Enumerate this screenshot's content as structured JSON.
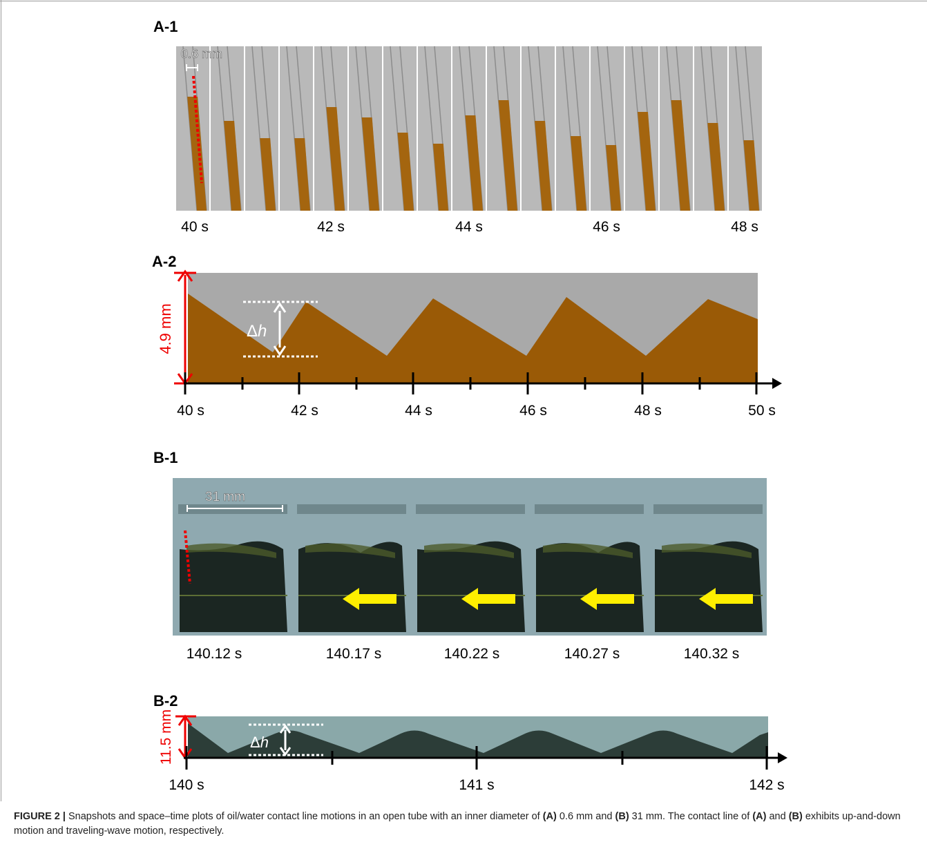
{
  "panels": [
    {
      "label": "A-1",
      "scale": "0.6 mm",
      "times": [
        "40 s",
        "42 s",
        "44 s",
        "46 s",
        "48 s"
      ]
    },
    {
      "label": "A-2",
      "height": "4.9 mm",
      "delta": "Δ",
      "delta_var": "h",
      "times": [
        "40 s",
        "42 s",
        "44 s",
        "46 s",
        "48 s",
        "50 s"
      ]
    },
    {
      "label": "B-1",
      "scale": "31 mm",
      "times": [
        "140.12 s",
        "140.17 s",
        "140.22 s",
        "140.27 s",
        "140.32 s"
      ]
    },
    {
      "label": "B-2",
      "height": "11.5 mm",
      "delta": "Δ",
      "delta_var": "h",
      "times": [
        "140 s",
        "141 s",
        "142 s"
      ]
    }
  ],
  "caption": {
    "parts": [
      {
        "text": "FIGURE 2 |",
        "bold": true
      },
      {
        "text": " Snapshots and space–time plots of oil/water contact line motions in an open tube with an inner diameter of ",
        "bold": false
      },
      {
        "text": "(A)",
        "bold": true
      },
      {
        "text": " 0.6 mm and ",
        "bold": false
      },
      {
        "text": "(B)",
        "bold": true
      },
      {
        "text": " 31 mm. The contact line of ",
        "bold": false
      },
      {
        "text": "(A)",
        "bold": true
      },
      {
        "text": " and ",
        "bold": false
      },
      {
        "text": "(B)",
        "bold": true
      },
      {
        "text": " exhibits up-and-down motion and traveling-wave motion, respectively.",
        "bold": false
      }
    ]
  }
}
